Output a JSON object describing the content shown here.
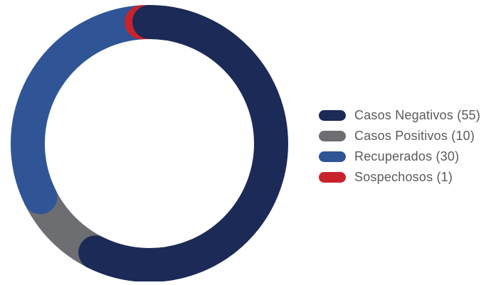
{
  "chart_data": {
    "type": "pie",
    "style": "donut",
    "title": "",
    "categories": [
      "Casos Negativos",
      "Casos Positivos",
      "Recuperados",
      "Sospechosos"
    ],
    "values": [
      55,
      10,
      30,
      1
    ],
    "colors": [
      "#1b2a56",
      "#6d6e71",
      "#2f5597",
      "#c8232c"
    ],
    "legend_labels": [
      "Casos Negativos (55)",
      "Casos Positivos (10)",
      "Recuperados (30)",
      "Sospechosos (1)"
    ],
    "legend_placement": "right",
    "start": "top",
    "direction": "clockwise",
    "rounded_ends": true
  }
}
